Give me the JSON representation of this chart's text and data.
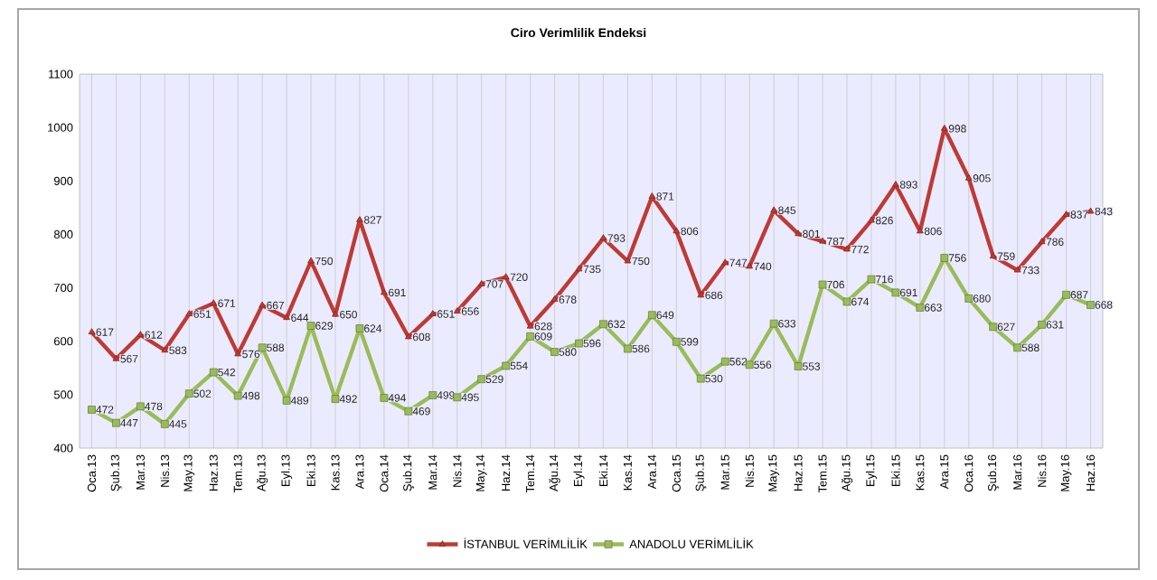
{
  "chart_data": {
    "type": "line",
    "title": "Ciro Verimlilik Endeksi",
    "categories": [
      "Oca.13",
      "Şub.13",
      "Mar.13",
      "Nis.13",
      "May.13",
      "Haz.13",
      "Tem.13",
      "Ağu.13",
      "Eyl.13",
      "Eki.13",
      "Kas.13",
      "Ara.13",
      "Oca.14",
      "Şub.14",
      "Mar.14",
      "Nis.14",
      "May.14",
      "Haz.14",
      "Tem.14",
      "Ağu.14",
      "Eyl.14",
      "Eki.14",
      "Kas.14",
      "Ara.14",
      "Oca.15",
      "Şub.15",
      "Mar.15",
      "Nis.15",
      "May.15",
      "Haz.15",
      "Tem.15",
      "Ağu.15",
      "Eyl.15",
      "Eki.15",
      "Kas.15",
      "Ara.15",
      "Oca.16",
      "Şub.16",
      "Mar.16",
      "Nis.16",
      "May.16",
      "Haz.16"
    ],
    "series": [
      {
        "name": "İSTANBUL VERİMLİLİK",
        "color": "#be3a34",
        "marker": "triangle",
        "values": [
          617,
          567,
          612,
          583,
          651,
          671,
          576,
          667,
          644,
          750,
          650,
          827,
          691,
          608,
          651,
          656,
          707,
          720,
          628,
          678,
          735,
          793,
          750,
          871,
          806,
          686,
          747,
          740,
          845,
          801,
          787,
          772,
          826,
          893,
          806,
          998,
          905,
          759,
          733,
          786,
          837,
          843
        ]
      },
      {
        "name": "ANADOLU VERİMLİLİK",
        "color": "#9bbb59",
        "marker": "square",
        "values": [
          472,
          447,
          478,
          445,
          502,
          542,
          498,
          588,
          489,
          629,
          492,
          624,
          494,
          469,
          499,
          495,
          529,
          554,
          609,
          580,
          596,
          632,
          586,
          649,
          599,
          530,
          562,
          556,
          633,
          553,
          706,
          674,
          716,
          691,
          663,
          756,
          680,
          627,
          588,
          631,
          687,
          668
        ]
      }
    ],
    "ylim": [
      400,
      1100
    ],
    "yticks": [
      400,
      500,
      600,
      700,
      800,
      900,
      1000,
      1100
    ],
    "grid": "x",
    "legend": "bottom",
    "data_labels": true,
    "line_style": "solid"
  }
}
